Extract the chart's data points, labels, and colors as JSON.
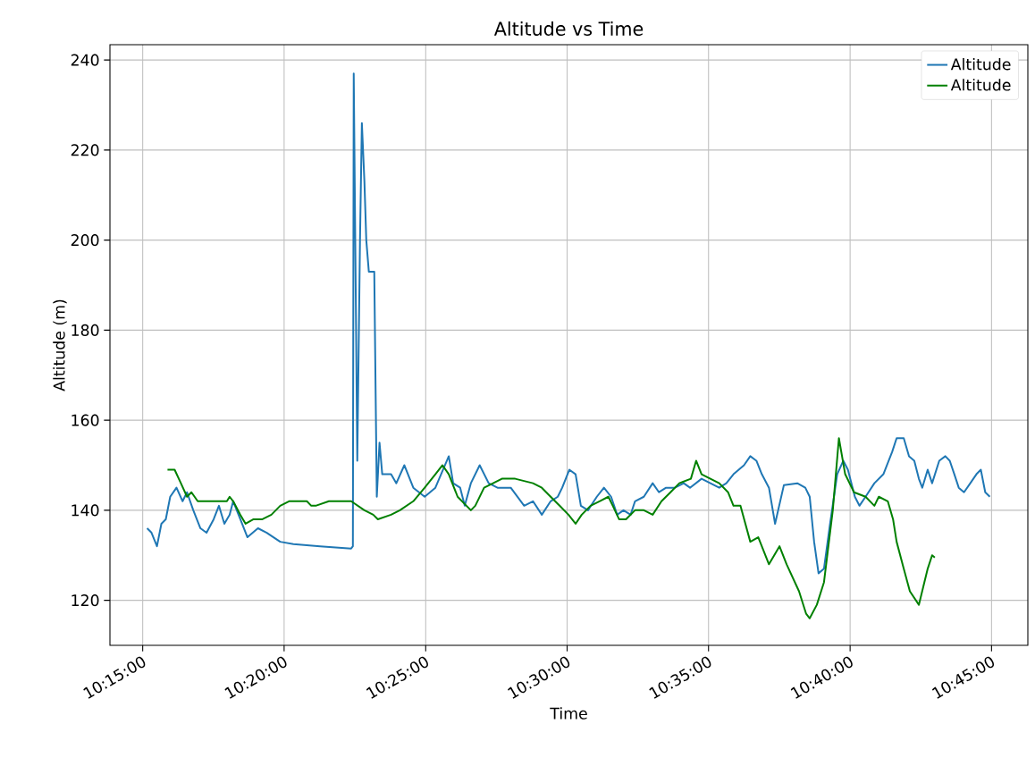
{
  "chart_data": {
    "type": "line",
    "title": "Altitude vs Time",
    "xlabel": "Time",
    "ylabel": "Altitude (m)",
    "xlim": [
      10.2307,
      10.7714
    ],
    "ylim": [
      110,
      243.4
    ],
    "xticks": [
      {
        "value": 10.25,
        "label": "10:15:00"
      },
      {
        "value": 10.3333,
        "label": "10:20:00"
      },
      {
        "value": 10.4167,
        "label": "10:25:00"
      },
      {
        "value": 10.5,
        "label": "10:30:00"
      },
      {
        "value": 10.5833,
        "label": "10:35:00"
      },
      {
        "value": 10.6667,
        "label": "10:40:00"
      },
      {
        "value": 10.75,
        "label": "10:45:00"
      }
    ],
    "yticks": [
      120,
      140,
      160,
      180,
      200,
      220,
      240
    ],
    "grid": true,
    "legend": "top right",
    "marker": "none",
    "line_style": "solid",
    "series": [
      {
        "name": "Altitude",
        "color": "#1f77b4",
        "x": [
          10.2526,
          10.2552,
          10.2584,
          10.261,
          10.2636,
          10.2662,
          10.2699,
          10.2735,
          10.2761,
          10.2798,
          10.284,
          10.2876,
          10.2918,
          10.2949,
          10.2981,
          10.3012,
          10.3033,
          10.3075,
          10.3117,
          10.3179,
          10.3231,
          10.331,
          10.3388,
          10.3545,
          10.3728,
          10.3738,
          10.3743,
          10.3764,
          10.378,
          10.3791,
          10.3806,
          10.3817,
          10.3832,
          10.3864,
          10.3879,
          10.3895,
          10.3911,
          10.3963,
          10.3994,
          10.4041,
          10.4094,
          10.4161,
          10.4224,
          10.4303,
          10.4329,
          10.437,
          10.4397,
          10.4433,
          10.4485,
          10.4538,
          10.459,
          10.4668,
          10.4747,
          10.4799,
          10.4851,
          10.4903,
          10.4945,
          10.4971,
          10.5013,
          10.505,
          10.5081,
          10.5123,
          10.5175,
          10.5217,
          10.5259,
          10.5295,
          10.5332,
          10.5374,
          10.54,
          10.5452,
          10.5504,
          10.5541,
          10.5583,
          10.5635,
          10.5687,
          10.5724,
          10.5792,
          10.5844,
          10.5896,
          10.5938,
          10.598,
          10.6042,
          10.6079,
          10.6115,
          10.6147,
          10.6189,
          10.6225,
          10.6277,
          10.6356,
          10.6403,
          10.6429,
          10.6455,
          10.6481,
          10.6513,
          10.6549,
          10.6591,
          10.6627,
          10.6654,
          10.6695,
          10.6722,
          10.6758,
          10.681,
          10.6863,
          10.6915,
          10.6941,
          10.6983,
          10.7014,
          10.7045,
          10.7072,
          10.7092,
          10.7124,
          10.715,
          10.7192,
          10.7228,
          10.7254,
          10.7281,
          10.7307,
          10.7338,
          10.7375,
          10.7411,
          10.7437,
          10.7463,
          10.749
        ],
        "values": [
          136,
          135,
          132,
          137,
          138,
          143,
          145,
          142,
          144,
          140,
          136,
          135,
          138,
          141,
          137,
          139,
          142,
          138,
          134,
          136,
          135,
          133,
          132.5,
          132,
          131.5,
          132,
          237,
          151,
          200,
          226,
          213,
          200,
          193,
          193,
          143,
          155,
          148,
          148,
          146,
          150,
          145,
          143,
          145,
          152,
          146,
          145,
          141,
          146,
          150,
          146,
          145,
          145,
          141,
          142,
          139,
          142,
          143,
          145,
          149,
          148,
          141,
          140,
          143,
          145,
          143,
          139,
          140,
          139,
          142,
          143,
          146,
          144,
          145,
          145,
          146,
          145,
          147,
          146,
          145,
          146,
          148,
          150,
          152,
          151,
          148,
          145,
          137,
          145.6,
          146,
          145,
          143,
          133,
          126,
          127,
          137,
          148,
          151,
          149,
          143,
          141,
          143,
          146,
          148,
          153,
          156,
          156,
          152,
          151,
          147,
          145,
          149,
          146,
          151,
          152,
          151,
          148,
          145,
          144,
          146,
          148,
          149,
          144,
          143
        ]
      },
      {
        "name": "Altitude",
        "color": "#008000",
        "x": [
          10.2646,
          10.2688,
          10.2725,
          10.2761,
          10.2787,
          10.2824,
          10.2892,
          10.2996,
          10.3012,
          10.3033,
          10.3075,
          10.3106,
          10.3153,
          10.3205,
          10.3258,
          10.331,
          10.3362,
          10.3467,
          10.3493,
          10.3519,
          10.3597,
          10.3728,
          10.3806,
          10.3858,
          10.3885,
          10.3963,
          10.4015,
          10.4094,
          10.4161,
          10.4224,
          10.4266,
          10.4303,
          10.4355,
          10.4407,
          10.4433,
          10.4459,
          10.4511,
          10.4564,
          10.4616,
          10.4694,
          10.4799,
          10.4851,
          10.4903,
          10.4956,
          10.5008,
          10.505,
          10.5086,
          10.5138,
          10.5191,
          10.5243,
          10.5269,
          10.5306,
          10.5347,
          10.54,
          10.5452,
          10.5504,
          10.5556,
          10.5609,
          10.5661,
          10.5729,
          10.576,
          10.5792,
          10.5844,
          10.5896,
          10.5948,
          10.598,
          10.6021,
          10.6079,
          10.6126,
          10.6189,
          10.6251,
          10.6293,
          10.6366,
          10.6408,
          10.6429,
          10.6471,
          10.6513,
          10.6565,
          10.6601,
          10.6638,
          10.669,
          10.6758,
          10.681,
          10.6836,
          10.6889,
          10.692,
          10.6941,
          10.6983,
          10.7019,
          10.7072,
          10.7098,
          10.7124,
          10.715,
          10.7166
        ],
        "values": [
          149,
          149,
          146,
          143,
          144,
          142,
          142,
          142,
          143,
          142,
          139,
          137,
          138,
          138,
          139,
          141,
          142,
          142,
          141,
          141,
          142,
          142,
          140,
          139,
          138,
          139,
          140,
          142,
          145,
          148,
          150,
          148,
          143,
          141,
          140,
          141,
          145,
          146,
          147,
          147,
          146,
          145,
          143,
          141,
          139,
          137,
          139,
          141,
          142,
          143,
          141,
          138,
          138,
          140,
          140,
          139,
          142,
          144,
          146,
          147,
          151,
          148,
          147,
          146,
          144,
          141,
          141,
          133,
          134,
          128,
          132,
          128,
          122,
          117,
          116,
          119,
          124,
          140,
          156,
          148,
          144,
          143,
          141,
          143,
          142,
          138,
          133,
          127,
          122,
          119,
          123,
          127,
          130,
          129.5
        ]
      }
    ]
  }
}
